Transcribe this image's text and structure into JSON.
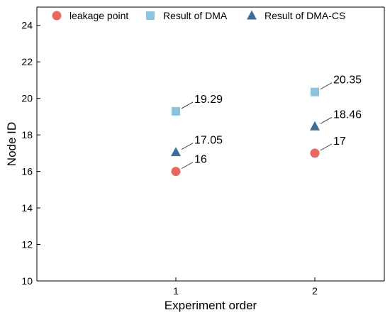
{
  "chart_data": {
    "type": "scatter",
    "title": "",
    "xlabel": "Experiment order",
    "ylabel": "Node ID",
    "x_categories": [
      "1",
      "2"
    ],
    "xlim": [
      0.0,
      2.5
    ],
    "ylim": [
      10,
      25
    ],
    "yticks": [
      "10",
      "12",
      "14",
      "16",
      "18",
      "20",
      "22",
      "24"
    ],
    "grid": false,
    "legend_position": "top",
    "series": [
      {
        "name": "leakage point",
        "marker": "circle",
        "color": "#E8695F",
        "points": [
          {
            "x": 1,
            "y": 16,
            "label": "16"
          },
          {
            "x": 2,
            "y": 17,
            "label": "17"
          }
        ]
      },
      {
        "name": "Result of DMA",
        "marker": "square",
        "color": "#8CC3DD",
        "points": [
          {
            "x": 1,
            "y": 19.29,
            "label": "19.29"
          },
          {
            "x": 2,
            "y": 20.35,
            "label": "20.35"
          }
        ]
      },
      {
        "name": "Result of DMA-CS",
        "marker": "triangle",
        "color": "#3D6E97",
        "points": [
          {
            "x": 1,
            "y": 17.05,
            "label": "17.05"
          },
          {
            "x": 2,
            "y": 18.46,
            "label": "18.46"
          }
        ]
      }
    ]
  }
}
